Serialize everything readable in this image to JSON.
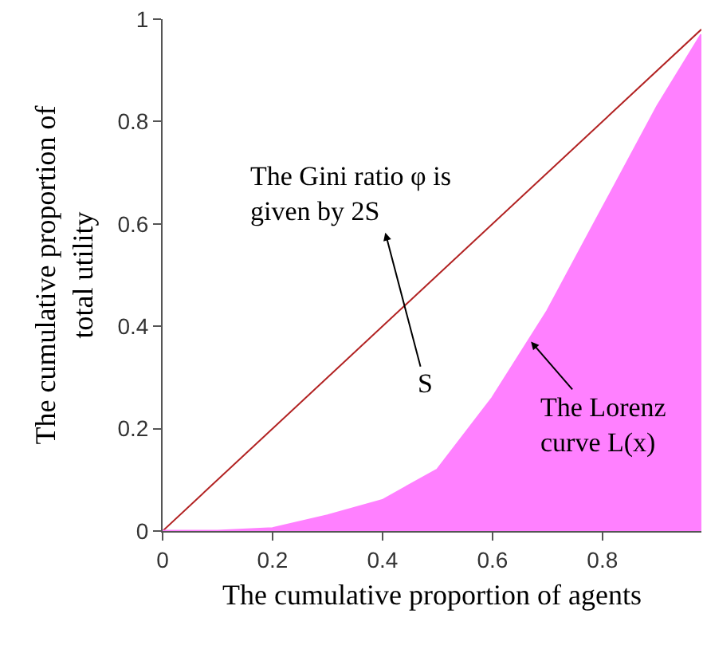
{
  "chart_data": {
    "type": "line",
    "xlabel": "The cumulative proportion of agents",
    "ylabel": "The cumulative proportion of\ntotal utility",
    "xlim": [
      0,
      0.98
    ],
    "ylim": [
      0,
      1
    ],
    "xticks": [
      0,
      0.2,
      0.4,
      0.6,
      0.8
    ],
    "yticks": [
      0,
      0.2,
      0.4,
      0.6,
      0.8,
      1
    ],
    "marker": "none",
    "line_style": "solid",
    "series": [
      {
        "color": "#b22222",
        "x": [
          0,
          0.98
        ],
        "values": [
          0,
          0.98
        ]
      },
      {
        "type": "area",
        "color": "#ff80ff",
        "x": [
          0,
          0.1,
          0.2,
          0.3,
          0.4,
          0.5,
          0.6,
          0.7,
          0.8,
          0.9,
          0.98
        ],
        "values": [
          0,
          0,
          0.005,
          0.03,
          0.06,
          0.12,
          0.26,
          0.43,
          0.63,
          0.83,
          0.97
        ]
      }
    ],
    "annotations": [
      "The Gini ratio φ is\ngiven by 2S",
      "S",
      {
        "text": "The Lorenz\ncurve L(x)",
        "x": 0.67,
        "y": 0.37
      }
    ]
  }
}
